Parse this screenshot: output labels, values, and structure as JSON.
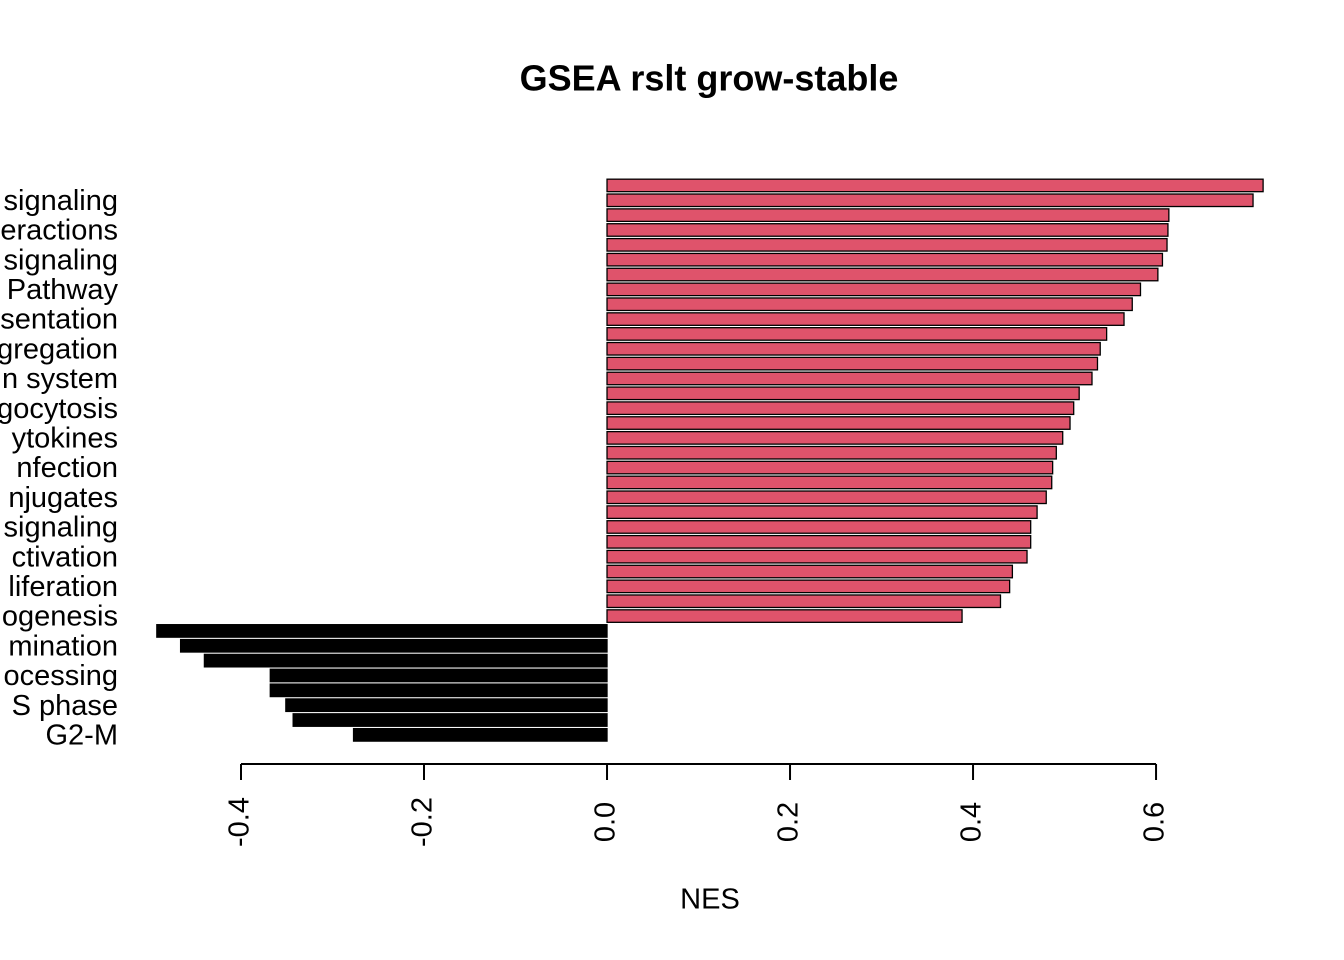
{
  "chart_data": {
    "type": "barh",
    "title": "GSEA rslt grow-stable",
    "xlabel": "NES",
    "categories": [
      null,
      "signaling",
      null,
      "eractions",
      null,
      "signaling",
      null,
      "Pathway",
      null,
      "sentation",
      null,
      "gregation",
      null,
      "n system",
      null,
      "gocytosis",
      null,
      "ytokines",
      null,
      "nfection ",
      null,
      "njugates",
      null,
      "signaling",
      null,
      "ctivation",
      null,
      "liferation",
      null,
      "ogenesis",
      null,
      "mination",
      null,
      "ocessing",
      null,
      "S phase",
      null,
      "G2-M"
    ],
    "values": [
      0.717,
      0.706,
      0.614,
      0.613,
      0.612,
      0.607,
      0.602,
      0.583,
      0.574,
      0.565,
      0.546,
      0.539,
      0.536,
      0.53,
      0.516,
      0.51,
      0.506,
      0.498,
      0.491,
      0.487,
      0.486,
      0.48,
      0.47,
      0.463,
      0.463,
      0.459,
      0.443,
      0.44,
      0.43,
      0.388,
      -0.492,
      -0.466,
      -0.44,
      -0.368,
      -0.368,
      -0.351,
      -0.343,
      -0.277
    ],
    "positive_color": "#df536b",
    "negative_color": "#000000",
    "xlim": [
      -0.5,
      0.73
    ],
    "xticks": [
      -0.4,
      -0.2,
      {
        "value": 0,
        "label": "0.0"
      },
      0.2,
      0.4,
      0.6
    ]
  }
}
